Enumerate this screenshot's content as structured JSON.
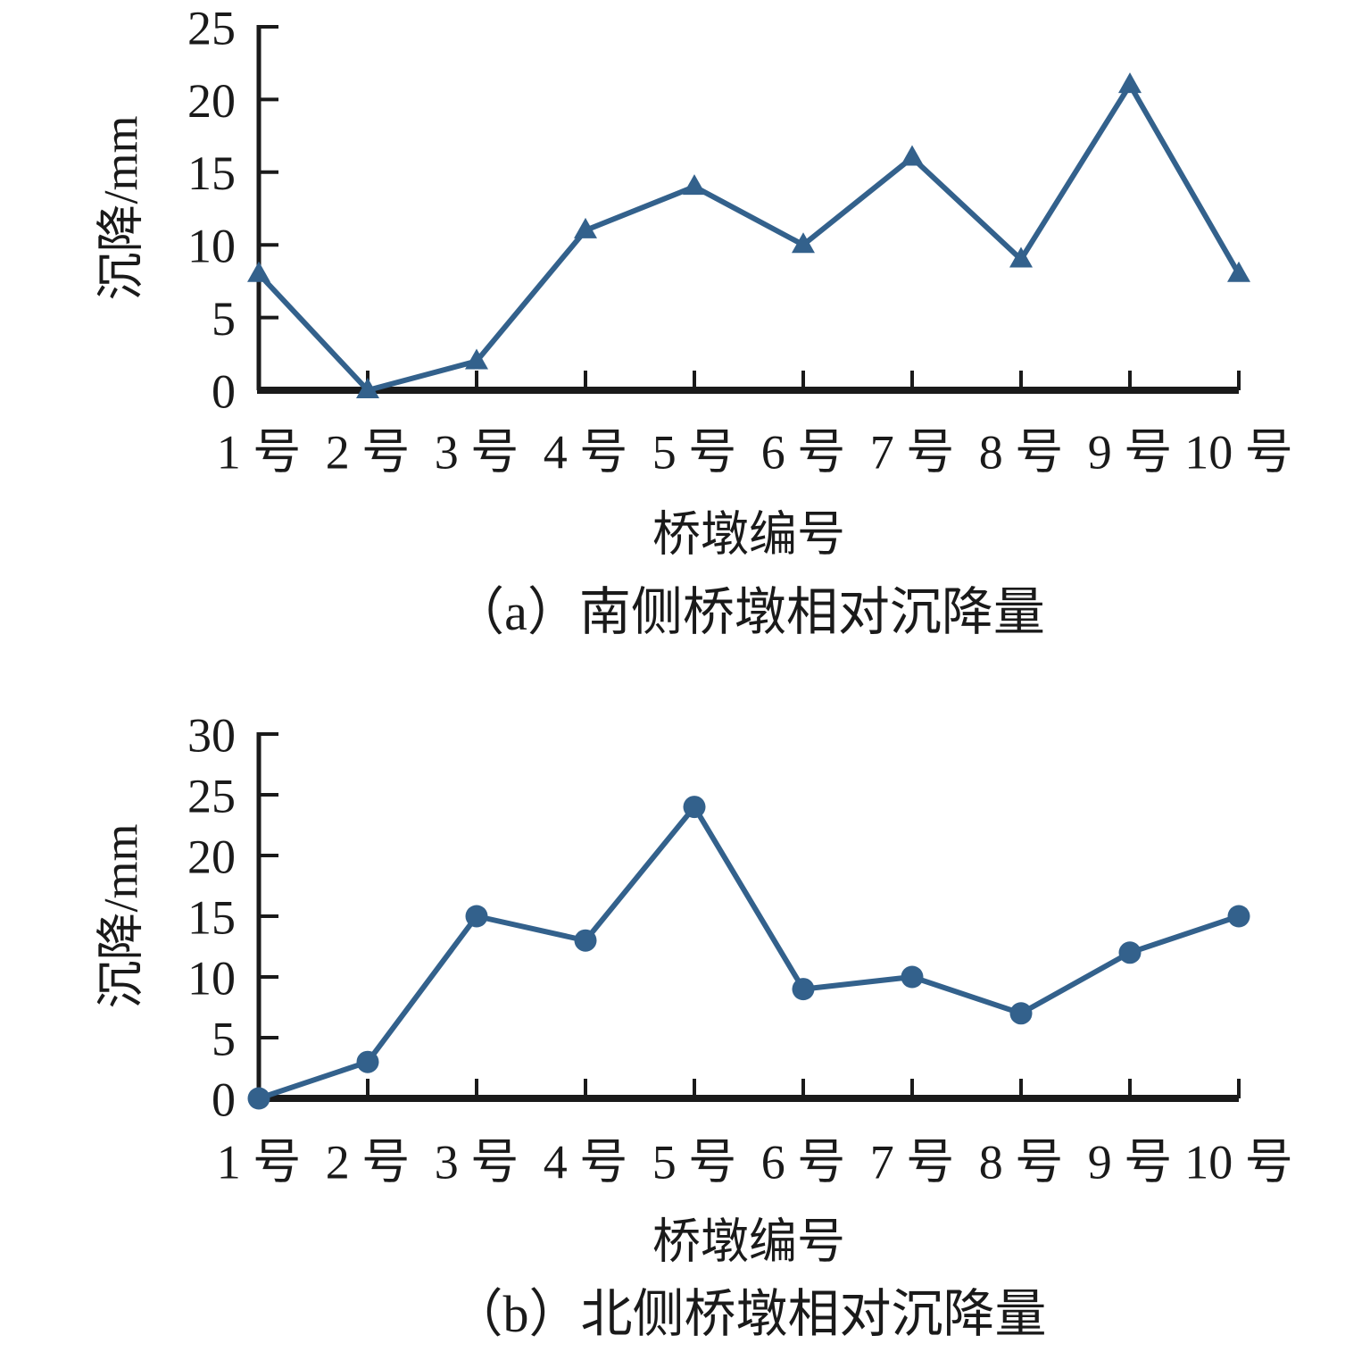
{
  "figure": {
    "background": "#ffffff",
    "series_color": "#33618c",
    "axis_color": "#1a1a1a",
    "text_color": "#1a1a1a"
  },
  "chart_data": [
    {
      "id": "a",
      "type": "line",
      "marker": "triangle",
      "title": "（a）南侧桥墩相对沉降量",
      "xlabel": "桥墩编号",
      "ylabel": "沉降/mm",
      "categories": [
        "1 号",
        "2 号",
        "3 号",
        "4 号",
        "5 号",
        "6 号",
        "7 号",
        "8 号",
        "9 号",
        "10 号"
      ],
      "values": [
        8,
        0,
        2,
        11,
        14,
        10,
        16,
        9,
        21,
        8
      ],
      "ylim": [
        0,
        25
      ],
      "yticks": [
        0,
        5,
        10,
        15,
        20,
        25
      ],
      "grid": false,
      "legend": "none"
    },
    {
      "id": "b",
      "type": "line",
      "marker": "circle",
      "title": "（b）北侧桥墩相对沉降量",
      "xlabel": "桥墩编号",
      "ylabel": "沉降/mm",
      "categories": [
        "1 号",
        "2 号",
        "3 号",
        "4 号",
        "5 号",
        "6 号",
        "7 号",
        "8 号",
        "9 号",
        "10 号"
      ],
      "values": [
        0,
        3,
        15,
        13,
        24,
        9,
        10,
        7,
        12,
        15
      ],
      "ylim": [
        0,
        30
      ],
      "yticks": [
        0,
        5,
        10,
        15,
        20,
        25,
        30
      ],
      "grid": false,
      "legend": "none"
    }
  ]
}
